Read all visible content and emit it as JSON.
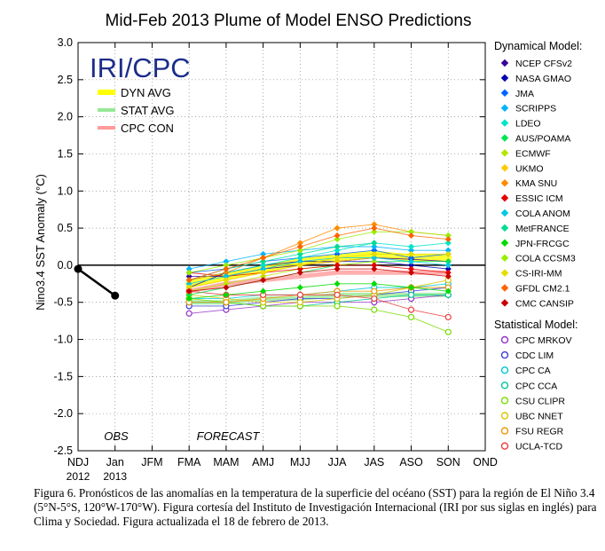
{
  "chart_data": {
    "type": "line",
    "title": "Mid-Feb 2013 Plume of Model ENSO Predictions",
    "ylabel": "Nino3.4 SST Anomaly (°C)",
    "xlabel": "",
    "ylim": [
      -2.5,
      3.0
    ],
    "yticks": [
      "3.0",
      "2.5",
      "2.0",
      "1.5",
      "1.0",
      "0.5",
      "0.0",
      "-0.5",
      "-1.0",
      "-1.5",
      "-2.0",
      "-2.5"
    ],
    "x_categories": [
      "NDJ",
      "Jan",
      "JFM",
      "FMA",
      "MAM",
      "AMJ",
      "MJJ",
      "JJA",
      "JAS",
      "ASO",
      "SON",
      "OND"
    ],
    "x_years": [
      "2012",
      "2013"
    ],
    "region_labels": {
      "obs": "OBS",
      "forecast": "FORECAST"
    },
    "logo": "IRI/CPC",
    "avg_legend": [
      {
        "name": "DYN AVG",
        "color": "#ffff00"
      },
      {
        "name": "STAT AVG",
        "color": "#98e898"
      },
      {
        "name": "CPC CON",
        "color": "#ff9b9b"
      }
    ],
    "observed": {
      "x": [
        "NDJ",
        "Jan"
      ],
      "values": [
        -0.05,
        -0.41
      ]
    },
    "dynamical_title": "Dynamical Model:",
    "statistical_title": "Statistical Model:",
    "dynamical": [
      {
        "name": "NCEP CFSv2",
        "color": "#3a0096",
        "values": [
          -0.15,
          -0.15,
          -0.05,
          0.0,
          0.05,
          0.1,
          0.08,
          0.05
        ]
      },
      {
        "name": "NASA GMAO",
        "color": "#0000b4",
        "values": [
          -0.3,
          -0.1,
          0.0,
          0.05,
          0.05,
          0.05,
          0.0,
          -0.05
        ]
      },
      {
        "name": "JMA",
        "color": "#0064ff",
        "values": [
          -0.1,
          -0.05,
          0.05,
          0.1,
          0.15,
          0.2,
          0.1,
          0.15
        ]
      },
      {
        "name": "SCRIPPS",
        "color": "#00b4ff",
        "values": [
          -0.05,
          0.05,
          0.15,
          0.2,
          0.25,
          0.25,
          0.2,
          0.2
        ]
      },
      {
        "name": "LDEO",
        "color": "#00e6c8",
        "values": [
          -0.2,
          -0.1,
          0.0,
          0.1,
          0.2,
          0.3,
          0.25,
          0.3
        ]
      },
      {
        "name": "AUS/POAMA",
        "color": "#00e650",
        "values": [
          -0.4,
          -0.3,
          -0.2,
          -0.1,
          0.0,
          0.05,
          0.05,
          0.05
        ]
      },
      {
        "name": "ECMWF",
        "color": "#b4e600",
        "values": [
          -0.35,
          -0.25,
          -0.15,
          -0.05,
          0.0,
          0.05
        ]
      },
      {
        "name": "UKMO",
        "color": "#ffc800",
        "values": [
          -0.3,
          -0.2,
          -0.1,
          0.0,
          0.05,
          0.1
        ]
      },
      {
        "name": "KMA SNU",
        "color": "#ff8c00",
        "values": [
          -0.2,
          -0.1,
          0.1,
          0.3,
          0.5,
          0.55,
          0.45,
          0.4
        ]
      },
      {
        "name": "ESSIC ICM",
        "color": "#e60000",
        "values": [
          -0.1,
          -0.15,
          -0.1,
          -0.05,
          0.0,
          0.0,
          -0.05,
          -0.1
        ]
      },
      {
        "name": "COLA ANOM",
        "color": "#00c8e6",
        "values": [
          -0.25,
          -0.15,
          -0.05,
          0.05,
          0.1,
          0.1,
          0.05,
          0.0
        ]
      },
      {
        "name": "MetFRANCE",
        "color": "#00dc96",
        "values": [
          -0.2,
          -0.05,
          0.05,
          0.15,
          0.25,
          0.3
        ]
      },
      {
        "name": "JPN-FRCGC",
        "color": "#00dc00",
        "values": [
          -0.45,
          -0.4,
          -0.35,
          -0.3,
          -0.25,
          -0.25,
          -0.3,
          -0.35
        ]
      },
      {
        "name": "COLA CCSM3",
        "color": "#96f000",
        "values": [
          -0.1,
          0.0,
          0.1,
          0.2,
          0.35,
          0.45,
          0.45,
          0.4
        ]
      },
      {
        "name": "CS-IRI-MM",
        "color": "#e6dc00",
        "values": [
          -0.3,
          -0.2,
          -0.1,
          0.0,
          0.1,
          0.15,
          0.15,
          0.15
        ]
      },
      {
        "name": "GFDL CM2.1",
        "color": "#ff6400",
        "values": [
          -0.2,
          -0.05,
          0.1,
          0.25,
          0.4,
          0.5,
          0.4,
          0.35
        ]
      },
      {
        "name": "CMC CANSIP",
        "color": "#c80000",
        "values": [
          -0.35,
          -0.3,
          -0.2,
          -0.1,
          -0.05,
          -0.05,
          -0.1,
          -0.15
        ]
      }
    ],
    "statistical": [
      {
        "name": "CPC MRKOV",
        "color": "#9632c8",
        "values": [
          -0.65,
          -0.6,
          -0.55,
          -0.5,
          -0.5,
          -0.5,
          -0.45,
          -0.4
        ]
      },
      {
        "name": "CDC LIM",
        "color": "#3c3cdc",
        "values": [
          -0.55,
          -0.55,
          -0.5,
          -0.45,
          -0.45,
          -0.4,
          -0.35,
          -0.3
        ]
      },
      {
        "name": "CPC CA",
        "color": "#00c8dc",
        "values": [
          -0.45,
          -0.45,
          -0.4,
          -0.4,
          -0.35,
          -0.3,
          -0.3,
          -0.25
        ]
      },
      {
        "name": "CPC CCA",
        "color": "#00c896",
        "values": [
          -0.5,
          -0.5,
          -0.55,
          -0.55,
          -0.5,
          -0.45,
          -0.4,
          -0.4
        ]
      },
      {
        "name": "CSU CLIPR",
        "color": "#78dc00",
        "values": [
          -0.45,
          -0.5,
          -0.55,
          -0.55,
          -0.55,
          -0.6,
          -0.7,
          -0.9
        ]
      },
      {
        "name": "UBC NNET",
        "color": "#dcc800",
        "values": [
          -0.4,
          -0.45,
          -0.5,
          -0.5,
          -0.45,
          -0.4,
          -0.3,
          -0.2
        ]
      },
      {
        "name": "FSU REGR",
        "color": "#f09600",
        "values": [
          -0.5,
          -0.5,
          -0.45,
          -0.4,
          -0.35,
          -0.35,
          -0.3,
          -0.3
        ]
      },
      {
        "name": "UCLA-TCD",
        "color": "#f03c3c",
        "values": [
          -0.35,
          -0.4,
          -0.4,
          -0.4,
          -0.4,
          -0.45,
          -0.6,
          -0.7
        ]
      }
    ],
    "averages": [
      {
        "name": "DYN AVG",
        "color": "#ffff00",
        "values": [
          -0.25,
          -0.15,
          -0.05,
          0.05,
          0.1,
          0.15,
          0.1,
          0.1
        ]
      },
      {
        "name": "STAT AVG",
        "color": "#98e898",
        "values": [
          -0.5,
          -0.5,
          -0.45,
          -0.45,
          -0.4,
          -0.4,
          -0.4,
          -0.4
        ]
      },
      {
        "name": "CPC CON",
        "color": "#ff9b9b",
        "values": [
          -0.35,
          -0.25,
          -0.2,
          -0.15,
          -0.1,
          -0.1,
          -0.1,
          -0.1
        ]
      }
    ]
  },
  "caption": "Figura 6. Pronósticos de las anomalías en la temperatura de la superficie del océano (SST) para la región de El Niño 3.4 (5°N-5°S, 120°W-170°W). Figura cortesía del Instituto de Investigación Internacional (IRI por sus siglas en inglés) para Clima y Sociedad. Figura actualizada el 18 de febrero de 2013."
}
